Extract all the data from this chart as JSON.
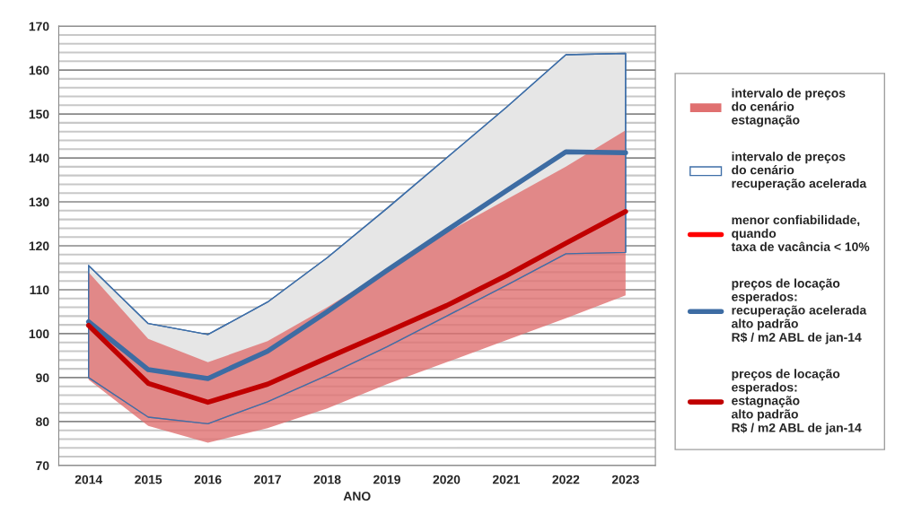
{
  "chart_data": {
    "type": "line",
    "xlabel": "ANO",
    "categories": [
      "2014",
      "2015",
      "2016",
      "2017",
      "2018",
      "2019",
      "2020",
      "2021",
      "2022",
      "2023"
    ],
    "ylim": [
      70,
      170
    ],
    "yticks": [
      70,
      80,
      90,
      100,
      110,
      120,
      130,
      140,
      150,
      160,
      170
    ],
    "grid": "y",
    "legend": "right",
    "series": [
      {
        "type": "area",
        "name": "intervalo de preços\ndo cenário\nestagnação",
        "color": "#e07070",
        "values": [
          null,
          null,
          null,
          null,
          null,
          null,
          null,
          null,
          null,
          null
        ]
      },
      {
        "type": "area",
        "name": "intervalo de preços\ndo cenário\nrecuperação acelerada",
        "color": "#3f6fa8",
        "values": [
          null,
          null,
          null,
          null,
          null,
          null,
          null,
          null,
          null,
          null
        ]
      },
      {
        "name": "menor confiabilidade,\nquando\ntaxa de vacância < 10%",
        "color": "#ff0000",
        "values": [
          null,
          null,
          null,
          null,
          null,
          null,
          null,
          null,
          null,
          null
        ]
      },
      {
        "name": "preços de locação\nesperados:\nrecuperação acelerada\nalto padrão\nR$ / m2 ABL de jan-14",
        "color": "#3d6ca3",
        "values": [
          102.7,
          91.8,
          89.8,
          96,
          105,
          114.4,
          123.5,
          132.5,
          141.4,
          141.2
        ],
        "lower": [
          90,
          81,
          79.5,
          84.5,
          90.5,
          97,
          104,
          111,
          118.2,
          118.5
        ],
        "upper": [
          115.5,
          102.3,
          99.8,
          107.2,
          117.3,
          128.5,
          140,
          151.5,
          163.5,
          163.8
        ]
      },
      {
        "name": "preços de locação\nesperados:\nestagnação\nalto padrão\nR$ / m2 ABL de jan-14",
        "color": "#c00000",
        "values": [
          101.9,
          88.7,
          84.4,
          88.5,
          94.5,
          100.4,
          106.4,
          113.2,
          120.6,
          127.8
        ],
        "lower": [
          89.5,
          79,
          75.2,
          78.5,
          83,
          88.5,
          93.5,
          98.5,
          103.5,
          108.7
        ],
        "upper": [
          114,
          98.8,
          93.5,
          98.3,
          106,
          114.5,
          123,
          130.5,
          138,
          146.3
        ]
      }
    ]
  }
}
